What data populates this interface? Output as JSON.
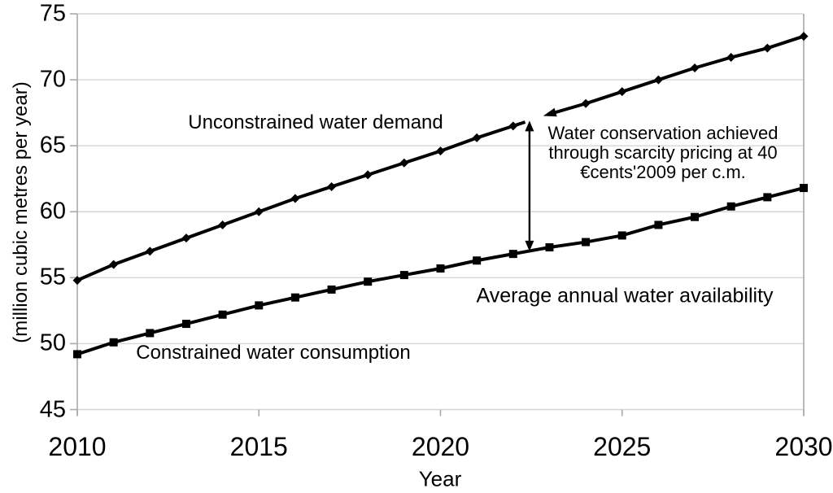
{
  "figure": {
    "background": "#ffffff",
    "grid_color": "#d6d6d6",
    "axis_color": "#a9a9a9",
    "line_color": "#000000",
    "text_color": "#000000"
  },
  "chart_data": {
    "type": "line",
    "title": "",
    "xlabel": "Year",
    "ylabel": "(million cubic metres per year)",
    "xlim": [
      2010,
      2030
    ],
    "ylim": [
      45,
      75
    ],
    "xticks": [
      2010,
      2015,
      2020,
      2025,
      2030
    ],
    "yticks": [
      45,
      50,
      55,
      60,
      65,
      70,
      75
    ],
    "grid": "horizontal",
    "legend": "none (inline text labels)",
    "x": [
      2010,
      2011,
      2012,
      2013,
      2014,
      2015,
      2016,
      2017,
      2018,
      2019,
      2020,
      2021,
      2022,
      2023,
      2024,
      2025,
      2026,
      2027,
      2028,
      2029,
      2030
    ],
    "series": [
      {
        "name": "Unconstrained water demand",
        "marker": "diamond",
        "values": [
          54.8,
          56.0,
          57.0,
          58.0,
          59.0,
          60.0,
          61.0,
          61.9,
          62.8,
          63.7,
          64.6,
          65.6,
          66.5,
          67.4,
          68.2,
          69.1,
          70.0,
          70.9,
          71.7,
          72.4,
          73.3
        ]
      },
      {
        "name": "Constrained water consumption",
        "marker": "square",
        "values": [
          49.2,
          50.1,
          50.8,
          51.5,
          52.2,
          52.9,
          53.5,
          54.1,
          54.7,
          55.2,
          55.7,
          56.3,
          56.8,
          57.3,
          57.7,
          58.2,
          59.0,
          59.6,
          60.4,
          61.1,
          61.8
        ]
      }
    ],
    "annotations": {
      "availability_label": "Average annual water availability",
      "conservation_note_lines": [
        "Water conservation achieved",
        "through scarcity pricing at 40",
        "€cents'2009 per c.m."
      ],
      "gap_arrow": {
        "x_year": 2022.45,
        "from_value": 66.9,
        "to_value": 57.0
      },
      "line_gap_years": [
        2022.33,
        2023.0
      ]
    }
  }
}
